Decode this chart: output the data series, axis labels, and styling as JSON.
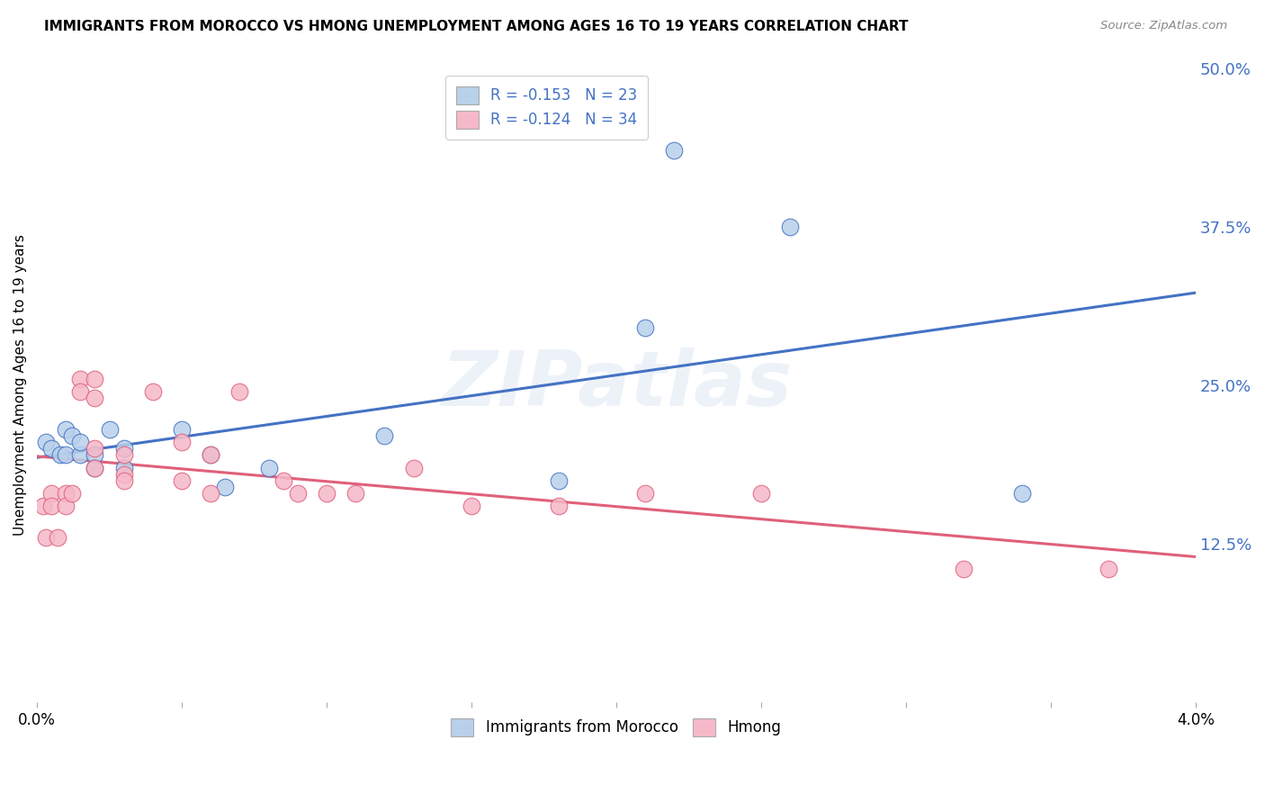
{
  "title": "IMMIGRANTS FROM MOROCCO VS HMONG UNEMPLOYMENT AMONG AGES 16 TO 19 YEARS CORRELATION CHART",
  "source": "Source: ZipAtlas.com",
  "ylabel": "Unemployment Among Ages 16 to 19 years",
  "x_min": 0.0,
  "x_max": 0.04,
  "y_min": 0.0,
  "y_max": 0.5,
  "right_yticks": [
    0.125,
    0.25,
    0.375,
    0.5
  ],
  "right_yticklabels": [
    "12.5%",
    "25.0%",
    "37.5%",
    "50.0%"
  ],
  "legend_r1": "-0.153",
  "legend_n1": "23",
  "legend_r2": "-0.124",
  "legend_n2": "34",
  "series1_facecolor": "#b8d0ea",
  "series2_facecolor": "#f5b8c8",
  "line1_color": "#4472c4",
  "line2_color": "#e0607a",
  "watermark": "ZIPatlas",
  "series1_label": "Immigrants from Morocco",
  "series2_label": "Hmong",
  "morocco_x": [
    0.0003,
    0.0005,
    0.0008,
    0.001,
    0.001,
    0.0012,
    0.0015,
    0.0015,
    0.002,
    0.002,
    0.0025,
    0.003,
    0.003,
    0.005,
    0.006,
    0.0065,
    0.008,
    0.012,
    0.018,
    0.021,
    0.022,
    0.026,
    0.034
  ],
  "morocco_y": [
    0.205,
    0.2,
    0.195,
    0.215,
    0.195,
    0.21,
    0.195,
    0.205,
    0.195,
    0.185,
    0.215,
    0.2,
    0.185,
    0.215,
    0.195,
    0.17,
    0.185,
    0.21,
    0.175,
    0.295,
    0.435,
    0.375,
    0.165
  ],
  "hmong_x": [
    0.0002,
    0.0003,
    0.0005,
    0.0005,
    0.0007,
    0.001,
    0.001,
    0.0012,
    0.0015,
    0.0015,
    0.002,
    0.002,
    0.002,
    0.002,
    0.003,
    0.003,
    0.003,
    0.004,
    0.005,
    0.005,
    0.006,
    0.006,
    0.007,
    0.0085,
    0.009,
    0.01,
    0.011,
    0.013,
    0.015,
    0.018,
    0.021,
    0.025,
    0.032,
    0.037
  ],
  "hmong_y": [
    0.155,
    0.13,
    0.165,
    0.155,
    0.13,
    0.165,
    0.155,
    0.165,
    0.255,
    0.245,
    0.255,
    0.24,
    0.2,
    0.185,
    0.195,
    0.18,
    0.175,
    0.245,
    0.205,
    0.175,
    0.195,
    0.165,
    0.245,
    0.175,
    0.165,
    0.165,
    0.165,
    0.185,
    0.155,
    0.155,
    0.165,
    0.165,
    0.105,
    0.105
  ],
  "background_color": "#ffffff",
  "grid_color": "#cccccc"
}
